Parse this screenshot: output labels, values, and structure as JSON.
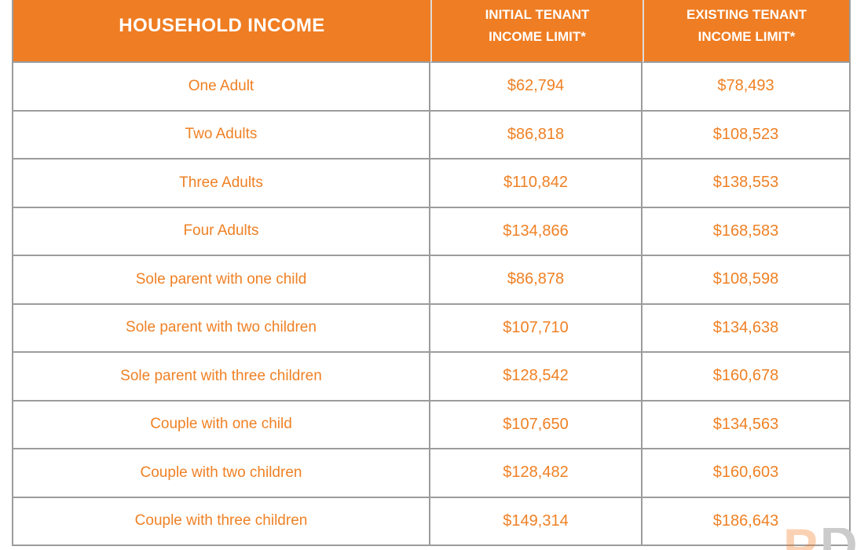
{
  "chart_data": {
    "type": "table",
    "columns": [
      "HOUSEHOLD INCOME",
      "INITIAL TENANT INCOME LIMIT*",
      "EXISTING TENANT INCOME LIMIT*"
    ],
    "rows": [
      [
        "One Adult",
        "$62,794",
        "$78,493"
      ],
      [
        "Two Adults",
        "$86,818",
        "$108,523"
      ],
      [
        "Three Adults",
        "$110,842",
        "$138,553"
      ],
      [
        "Four Adults",
        "$134,866",
        "$168,583"
      ],
      [
        "Sole parent with one child",
        "$86,878",
        "$108,598"
      ],
      [
        "Sole parent with two children",
        "$107,710",
        "$134,638"
      ],
      [
        "Sole parent with three children",
        "$128,542",
        "$160,678"
      ],
      [
        "Couple with one child",
        "$107,650",
        "$134,563"
      ],
      [
        "Couple with two children",
        "$128,482",
        "$160,603"
      ],
      [
        "Couple with three children",
        "$149,314",
        "$186,643"
      ]
    ]
  },
  "table": {
    "header": {
      "col1": "HOUSEHOLD INCOME",
      "col2_line1": "INITIAL TENANT",
      "col2_line2": "INCOME LIMIT*",
      "col3_line1": "EXISTING TENANT",
      "col3_line2": "INCOME LIMIT*"
    },
    "rows": [
      {
        "household": "One Adult",
        "initial": "$62,794",
        "existing": "$78,493"
      },
      {
        "household": "Two Adults",
        "initial": "$86,818",
        "existing": "$108,523"
      },
      {
        "household": "Three Adults",
        "initial": "$110,842",
        "existing": "$138,553"
      },
      {
        "household": "Four Adults",
        "initial": "$134,866",
        "existing": "$168,583"
      },
      {
        "household": "Sole parent with one child",
        "initial": "$86,878",
        "existing": "$108,598"
      },
      {
        "household": "Sole parent with two children",
        "initial": "$107,710",
        "existing": "$134,638"
      },
      {
        "household": "Sole parent with three children",
        "initial": "$128,542",
        "existing": "$160,678"
      },
      {
        "household": "Couple with one child",
        "initial": "$107,650",
        "existing": "$134,563"
      },
      {
        "household": "Couple with two children",
        "initial": "$128,482",
        "existing": "$160,603"
      },
      {
        "household": "Couple with three children",
        "initial": "$149,314",
        "existing": "$186,643"
      }
    ]
  },
  "watermark": {
    "description": "partial two-letter logo cut off at bottom-right edge",
    "letters": [
      "P",
      "D"
    ]
  },
  "colors": {
    "header_bg": "#EF7D23",
    "header_text": "#FFFFFF",
    "cell_text": "#EF8125",
    "border": "#9C9C9C",
    "header_divider": "#DCDCDC",
    "watermark_orange": "rgba(240,125,36,0.35)",
    "watermark_gray": "#CBCBCB"
  }
}
